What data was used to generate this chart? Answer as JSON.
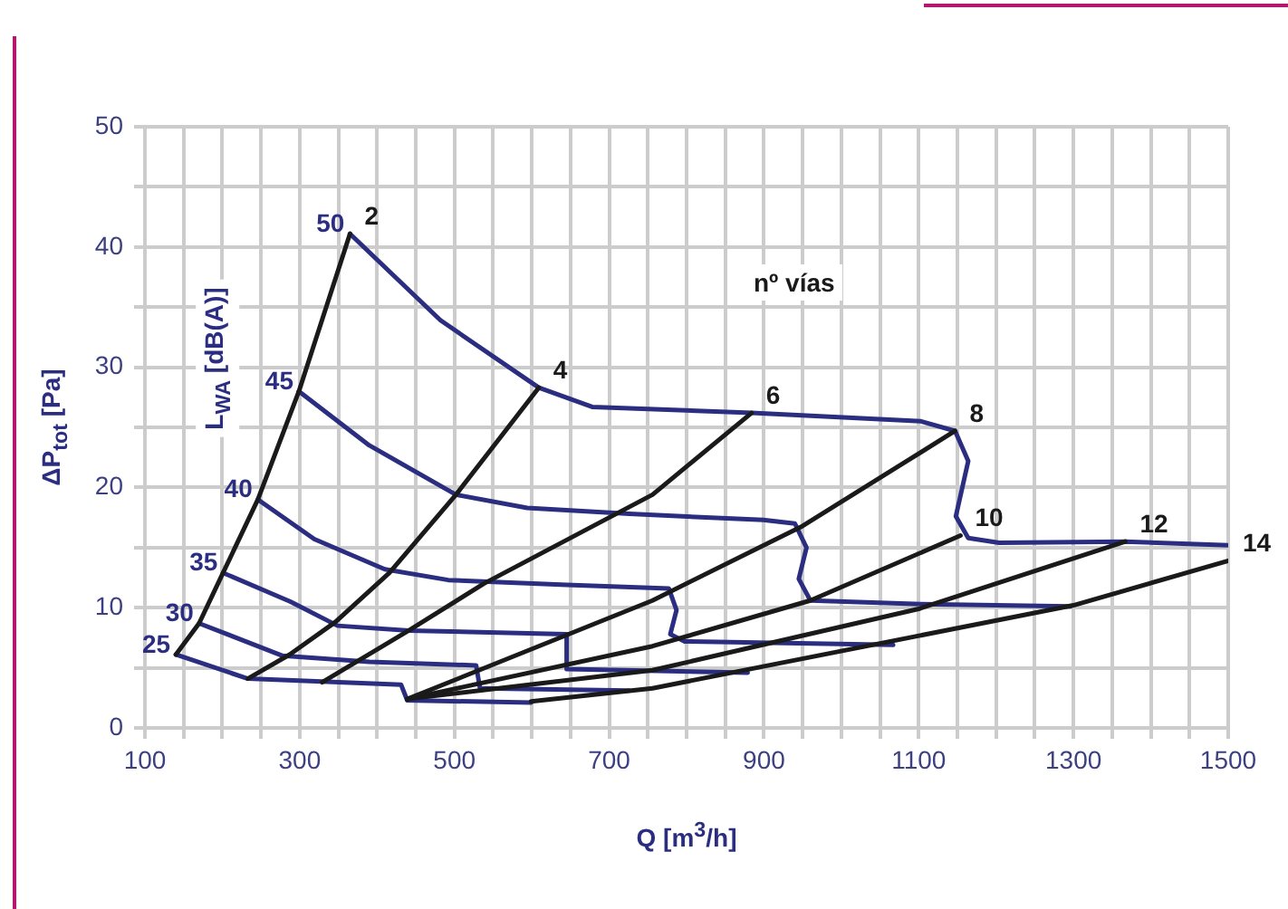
{
  "chart_data": {
    "type": "line",
    "xlabel": "Q [m$^{3}$/h]",
    "ylabel": "ΔP$_{tot}$ [Pa]",
    "annotations": [
      "nº vías",
      "L$_{WA}$ [dB(A)]"
    ],
    "xlim": [
      100,
      1500
    ],
    "ylim": [
      0,
      50
    ],
    "xticks": [
      100,
      {
        "value": 150,
        "label": null
      },
      {
        "value": 200,
        "label": null
      },
      {
        "value": 250,
        "label": null
      },
      300,
      {
        "value": 350,
        "label": null
      },
      {
        "value": 400,
        "label": null
      },
      {
        "value": 450,
        "label": null
      },
      500,
      {
        "value": 550,
        "label": null
      },
      {
        "value": 600,
        "label": null
      },
      {
        "value": 650,
        "label": null
      },
      700,
      {
        "value": 750,
        "label": null
      },
      {
        "value": 800,
        "label": null
      },
      {
        "value": 850,
        "label": null
      },
      900,
      {
        "value": 950,
        "label": null
      },
      {
        "value": 1000,
        "label": null
      },
      {
        "value": 1050,
        "label": null
      },
      1100,
      {
        "value": 1150,
        "label": null
      },
      {
        "value": 1200,
        "label": null
      },
      {
        "value": 1250,
        "label": null
      },
      1300,
      {
        "value": 1350,
        "label": null
      },
      {
        "value": 1400,
        "label": null
      },
      {
        "value": 1450,
        "label": null
      },
      1500
    ],
    "yticks": [
      0,
      {
        "value": 5,
        "label": null
      },
      10,
      {
        "value": 15,
        "label": null
      },
      20,
      {
        "value": 25,
        "label": null
      },
      30,
      {
        "value": 35,
        "label": null
      },
      40,
      {
        "value": 45,
        "label": null
      },
      50
    ],
    "grid": true,
    "series": [
      {
        "name": "2",
        "color": "#1a1a1a",
        "x": [
          140,
          170,
          201,
          246,
          299,
          365
        ],
        "values": [
          6.1,
          8.7,
          12.9,
          19.0,
          28.0,
          41.1
        ]
      },
      {
        "name": "4",
        "color": "#1a1a1a",
        "x": [
          233,
          287,
          346,
          416,
          502,
          609
        ],
        "values": [
          4.1,
          6.1,
          8.8,
          12.9,
          19.4,
          28.3
        ]
      },
      {
        "name": "6",
        "color": "#1a1a1a",
        "x": [
          329,
          441,
          538,
          756,
          884
        ],
        "values": [
          3.8,
          8.1,
          12.0,
          19.4,
          26.2
        ]
      },
      {
        "name": "8",
        "color": "#1a1a1a",
        "x": [
          439,
          756,
          950,
          1147
        ],
        "values": [
          2.4,
          10.6,
          16.8,
          24.7
        ]
      },
      {
        "name": "10",
        "color": "#1a1a1a",
        "x": [
          439,
          756,
          960,
          1154
        ],
        "values": [
          2.4,
          6.8,
          10.6,
          16.0
        ]
      },
      {
        "name": "12",
        "color": "#1a1a1a",
        "x": [
          439,
          756,
          1100,
          1367
        ],
        "values": [
          2.4,
          4.8,
          9.9,
          15.5
        ]
      },
      {
        "name": "14",
        "color": "#1a1a1a",
        "x": [
          599,
          756,
          1300,
          1500
        ],
        "values": [
          2.2,
          3.3,
          10.2,
          13.9
        ]
      },
      {
        "name": "50",
        "color": "#2b2e80",
        "x": [
          365,
          482,
          609,
          678,
          884,
          1103,
          1147,
          1164,
          1148,
          1164,
          1204,
          1367,
          1500
        ],
        "values": [
          41.1,
          33.9,
          28.3,
          26.7,
          26.2,
          25.5,
          24.7,
          22.2,
          17.6,
          15.8,
          15.4,
          15.5,
          15.2
        ]
      },
      {
        "name": "45",
        "color": "#2b2e80",
        "x": [
          299,
          390,
          502,
          594,
          726,
          899,
          940,
          955,
          945,
          960,
          1103,
          1296
        ],
        "values": [
          28.0,
          23.5,
          19.4,
          18.3,
          17.8,
          17.3,
          17.0,
          15.0,
          12.4,
          10.6,
          10.3,
          10.1
        ]
      },
      {
        "name": "40",
        "color": "#2b2e80",
        "x": [
          246,
          319,
          410,
          492,
          645,
          777,
          787,
          779,
          797,
          1067
        ],
        "values": [
          19.0,
          15.7,
          13.2,
          12.3,
          11.9,
          11.6,
          9.8,
          7.8,
          7.2,
          6.9
        ]
      },
      {
        "name": "35",
        "color": "#2b2e80",
        "x": [
          201,
          288,
          349,
          441,
          645,
          645,
          879
        ],
        "values": [
          12.9,
          10.5,
          8.5,
          8.1,
          7.8,
          4.9,
          4.6
        ]
      },
      {
        "name": "30",
        "color": "#2b2e80",
        "x": [
          170,
          278,
          390,
          528,
          533,
          726
        ],
        "values": [
          8.7,
          6.0,
          5.5,
          5.2,
          3.3,
          3.1
        ]
      },
      {
        "name": "25",
        "color": "#2b2e80",
        "x": [
          140,
          233,
          431,
          439,
          599
        ],
        "values": [
          6.1,
          4.1,
          3.6,
          2.3,
          2.1
        ]
      }
    ]
  }
}
